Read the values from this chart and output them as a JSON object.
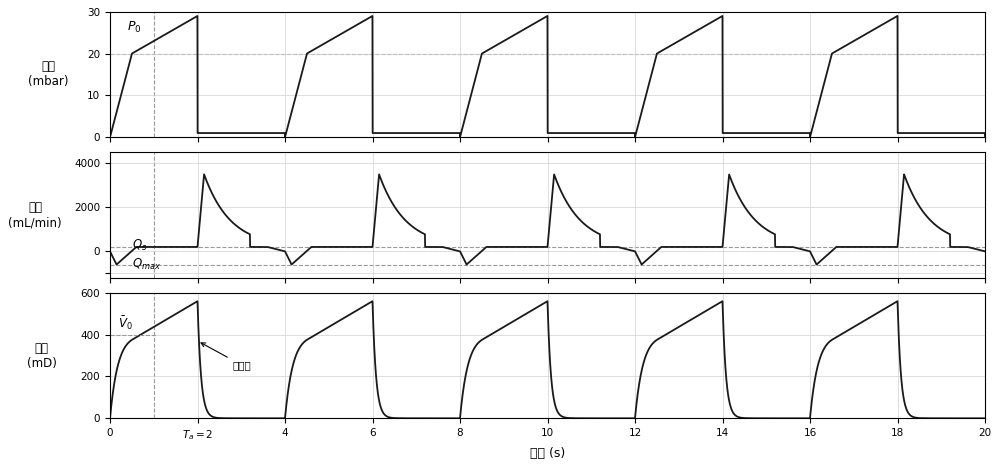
{
  "xlabel": "时间 (s)",
  "ylabel1": "压力\n(mbar)",
  "ylabel2": "流量\n(mL/min)",
  "ylabel3": "容量\n(mD)",
  "xlim": [
    0,
    20
  ],
  "ylim1": [
    0,
    30
  ],
  "ylim2_display": [
    -4500,
    1200
  ],
  "ylim3": [
    0,
    600
  ],
  "period": 4.0,
  "insp_end": 2.0,
  "dashed_p": 20.0,
  "dashed_qmax": 600,
  "dashed_qs": -200,
  "dashed_v0": 400,
  "background_color": "#ffffff",
  "line_color": "#1a1a1a",
  "dashed_color": "#999999",
  "grid_color": "#d0d0d0",
  "xticks": [
    0,
    2,
    4,
    6,
    8,
    10,
    12,
    14,
    16,
    18,
    20
  ],
  "yticks1": [
    0,
    10,
    20,
    30
  ],
  "yticks2_vals": [
    0,
    2000,
    4000
  ],
  "yticks2_labels": [
    "0",
    "2000",
    "4000"
  ],
  "yticks3": [
    0,
    200,
    400,
    600
  ]
}
